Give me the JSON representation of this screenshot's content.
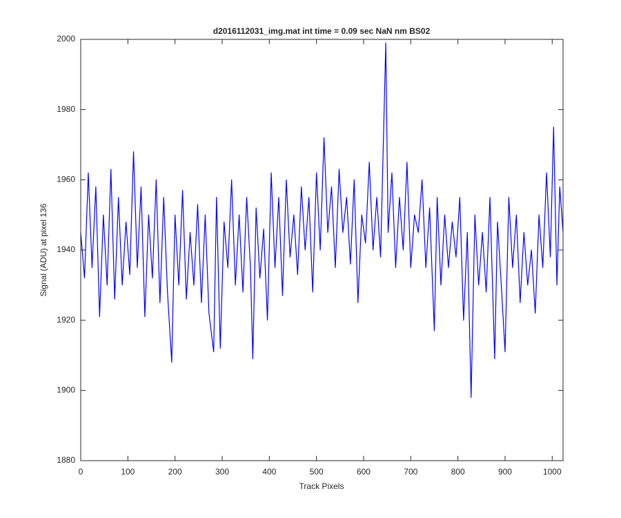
{
  "chart_data": {
    "type": "line",
    "title": "d2016112031_img.mat int time = 0.09 sec  NaN nm BS02",
    "x_label": "Track Pixels",
    "y_label": "Signal (ADU) at pixel 136",
    "xlim": [
      0,
      1023
    ],
    "ylim": [
      1880,
      2000
    ],
    "xticks": [
      0,
      100,
      200,
      300,
      400,
      500,
      600,
      700,
      800,
      900,
      1000
    ],
    "yticks": [
      1880,
      1900,
      1920,
      1940,
      1960,
      1980,
      2000
    ],
    "grid": false,
    "x": [
      0,
      8,
      16,
      24,
      32,
      40,
      48,
      56,
      64,
      72,
      80,
      88,
      96,
      104,
      112,
      120,
      128,
      136,
      144,
      152,
      160,
      168,
      176,
      184,
      193,
      200,
      208,
      216,
      224,
      232,
      240,
      248,
      256,
      264,
      272,
      282,
      288,
      296,
      304,
      312,
      320,
      328,
      336,
      344,
      352,
      360,
      365,
      372,
      380,
      388,
      396,
      404,
      412,
      420,
      428,
      436,
      444,
      452,
      460,
      468,
      476,
      484,
      492,
      500,
      508,
      516,
      524,
      532,
      540,
      548,
      556,
      564,
      572,
      580,
      588,
      596,
      604,
      612,
      620,
      628,
      636,
      647,
      652,
      660,
      668,
      676,
      684,
      692,
      700,
      708,
      716,
      724,
      732,
      740,
      750,
      756,
      764,
      772,
      780,
      788,
      796,
      804,
      812,
      820,
      828,
      836,
      844,
      852,
      860,
      868,
      878,
      884,
      892,
      900,
      908,
      916,
      924,
      932,
      940,
      948,
      956,
      964,
      972,
      980,
      988,
      996,
      1003,
      1010,
      1016,
      1023
    ],
    "series": [
      {
        "color": "#0000ff",
        "values": [
          1945,
          1932,
          1962,
          1935,
          1958,
          1921,
          1950,
          1930,
          1963,
          1926,
          1955,
          1930,
          1948,
          1933,
          1968,
          1935,
          1958,
          1921,
          1950,
          1932,
          1960,
          1925,
          1955,
          1928,
          1908,
          1950,
          1930,
          1957,
          1926,
          1945,
          1930,
          1953,
          1925,
          1950,
          1922,
          1911,
          1955,
          1912,
          1948,
          1935,
          1960,
          1930,
          1950,
          1928,
          1955,
          1935,
          1909,
          1952,
          1932,
          1946,
          1920,
          1962,
          1935,
          1955,
          1927,
          1960,
          1938,
          1950,
          1933,
          1958,
          1940,
          1955,
          1928,
          1962,
          1940,
          1972,
          1945,
          1958,
          1935,
          1963,
          1945,
          1955,
          1936,
          1960,
          1925,
          1950,
          1942,
          1965,
          1940,
          1955,
          1938,
          1999,
          1945,
          1962,
          1935,
          1955,
          1940,
          1965,
          1935,
          1950,
          1945,
          1960,
          1935,
          1952,
          1917,
          1955,
          1930,
          1950,
          1935,
          1948,
          1938,
          1955,
          1920,
          1945,
          1898,
          1950,
          1930,
          1945,
          1928,
          1955,
          1909,
          1948,
          1930,
          1911,
          1955,
          1935,
          1950,
          1925,
          1945,
          1930,
          1940,
          1922,
          1950,
          1935,
          1962,
          1938,
          1975,
          1930,
          1958,
          1945
        ]
      }
    ]
  }
}
